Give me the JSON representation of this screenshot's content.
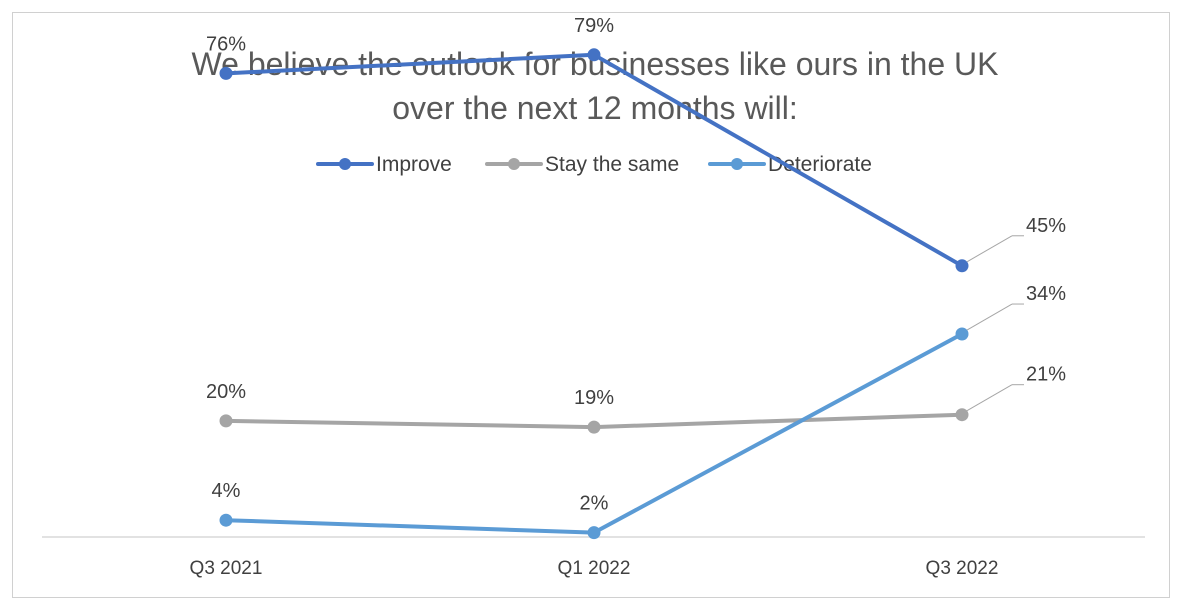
{
  "chart_data": {
    "type": "line",
    "title_lines": [
      "We believe the outlook for businesses like ours in the UK",
      "over the next 12 months will:"
    ],
    "categories": [
      "Q3 2021",
      "Q1 2022",
      "Q3 2022"
    ],
    "series": [
      {
        "name": "Improve",
        "values": [
          76,
          79,
          45
        ],
        "labels": [
          "76%",
          "79%",
          "45%"
        ],
        "color": "#4472C4"
      },
      {
        "name": "Stay the same",
        "values": [
          20,
          19,
          21
        ],
        "labels": [
          "20%",
          "19%",
          "21%"
        ],
        "color": "#A5A5A5"
      },
      {
        "name": "Deteriorate",
        "values": [
          4,
          2,
          34
        ],
        "labels": [
          "4%",
          "2%",
          "34%"
        ],
        "color": "#5B9BD5"
      }
    ],
    "ylim": [
      0,
      83
    ],
    "grid": false,
    "legend_position": "top",
    "xlabel": "",
    "ylabel": ""
  }
}
